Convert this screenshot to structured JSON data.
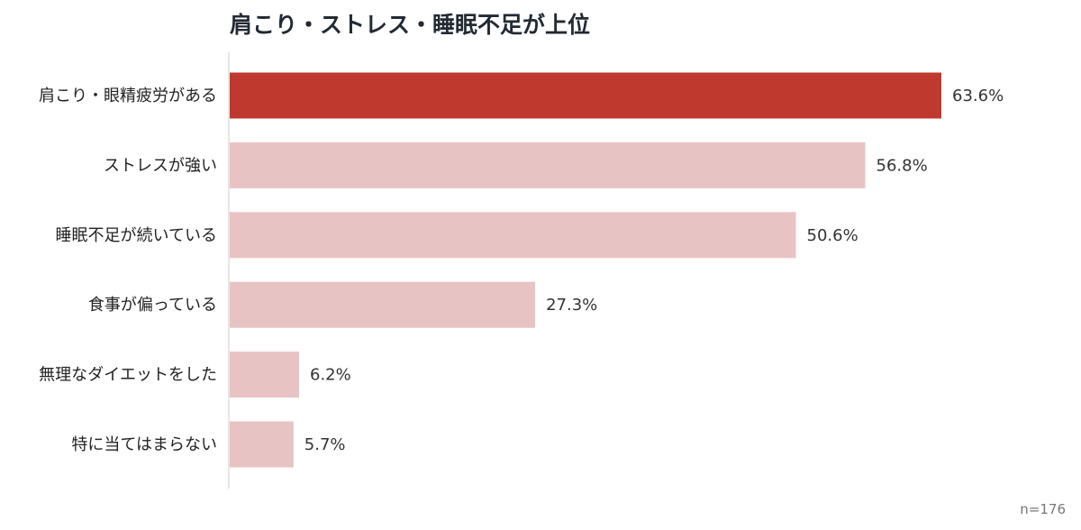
{
  "chart_data": {
    "type": "bar",
    "orientation": "horizontal",
    "title": "肩こり・ストレス・睡眠不足が上位",
    "categories": [
      "肩こり・眼精疲労がある",
      "ストレスが強い",
      "睡眠不足が続いている",
      "食事が偏っている",
      "無理なダイエットをした",
      "特に当てはまらない"
    ],
    "values": [
      63.6,
      56.8,
      50.6,
      27.3,
      6.2,
      5.7
    ],
    "value_labels": [
      "63.6%",
      "56.8%",
      "50.6%",
      "27.3%",
      "6.2%",
      "5.7%"
    ],
    "unit": "%",
    "xlim": [
      0,
      70
    ],
    "grid": false,
    "highlight_index": 0,
    "colors": {
      "highlight": "#c0392f",
      "bar": "#e8c3c3",
      "axis": "#cccccc"
    },
    "note": "n=176"
  }
}
